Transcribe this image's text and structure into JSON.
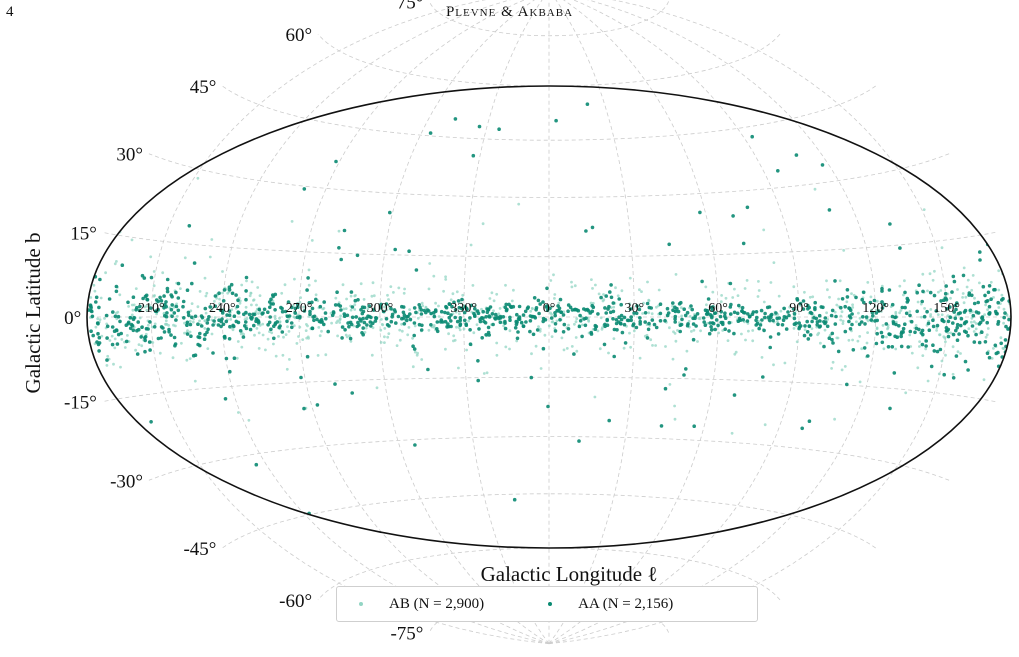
{
  "header": {
    "page_number": "4",
    "running_head": "Plevne & Akbaba"
  },
  "chart_data": {
    "type": "scatter",
    "projection": "hammer-aitoff (mollweide-like)",
    "title": "",
    "xlabel": "Galactic Longitude ℓ",
    "ylabel": "Galactic Latitude b",
    "grid": true,
    "legend_position": "bottom-center",
    "lon_ticks": [
      "210°",
      "240°",
      "270°",
      "300°",
      "330°",
      "0°",
      "30°",
      "60°",
      "90°",
      "120°",
      "150°"
    ],
    "lat_ticks": [
      "75°",
      "60°",
      "45°",
      "30°",
      "15°",
      "0°",
      "-15°",
      "-30°",
      "-45°",
      "-60°",
      "-75°"
    ],
    "series": [
      {
        "name": "AB (N = 2,900)",
        "color": "#93d5c4",
        "marker_size": 2,
        "concentration": "galactic plane, broader spread"
      },
      {
        "name": "AA (N = 2,156)",
        "color": "#0a8a72",
        "marker_size": 3,
        "concentration": "galactic plane, dense ridge"
      }
    ],
    "colors": {
      "outline": "#111111",
      "grid": "#cccccc"
    }
  },
  "legend": {
    "entries": [
      {
        "label": "AB (N = 2,900)",
        "color": "#93d5c4"
      },
      {
        "label": "AA (N = 2,156)",
        "color": "#0a8a72"
      }
    ]
  }
}
